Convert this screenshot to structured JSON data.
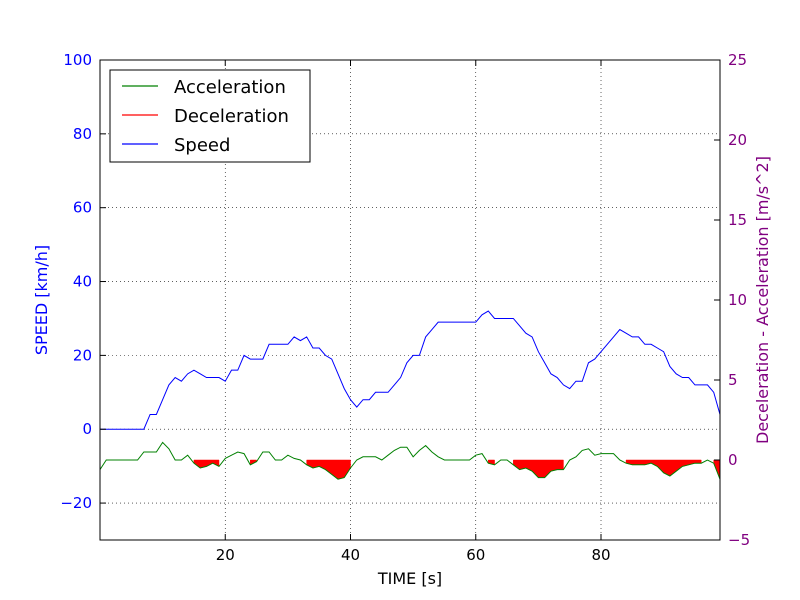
{
  "chart_data": {
    "type": "line",
    "xlabel": "TIME [s]",
    "ylabel_left": "SPEED [km/h]",
    "ylabel_right": "Deceleration - Acceleration [m/s^2]",
    "xlim": [
      0,
      99
    ],
    "ylim_left": [
      -30,
      100
    ],
    "ylim_right": [
      -5,
      25
    ],
    "xticks": [
      "20",
      "40",
      "60",
      "80"
    ],
    "yticks_left": [
      "−20",
      "0",
      "20",
      "40",
      "60",
      "80",
      "100"
    ],
    "yticks_right": [
      "−5",
      "0",
      "5",
      "10",
      "15",
      "20",
      "25"
    ],
    "grid": true,
    "legend_position": "top-left",
    "colors": {
      "acceleration": "#008000",
      "deceleration": "#ff0000",
      "speed": "#0000ff",
      "left_axis": "#0000ff",
      "right_axis": "#800080"
    },
    "legend": [
      "Acceleration",
      "Deceleration",
      "Speed"
    ],
    "speed": {
      "x": [
        0,
        1,
        2,
        3,
        4,
        5,
        6,
        7,
        8,
        9,
        10,
        11,
        12,
        13,
        14,
        15,
        16,
        17,
        18,
        19,
        20,
        21,
        22,
        23,
        24,
        25,
        26,
        27,
        28,
        29,
        30,
        31,
        32,
        33,
        34,
        35,
        36,
        37,
        38,
        39,
        40,
        41,
        42,
        43,
        44,
        45,
        46,
        47,
        48,
        49,
        50,
        51,
        52,
        53,
        54,
        55,
        56,
        57,
        58,
        59,
        60,
        61,
        62,
        63,
        64,
        65,
        66,
        67,
        68,
        69,
        70,
        71,
        72,
        73,
        74,
        75,
        76,
        77,
        78,
        79,
        80,
        81,
        82,
        83,
        84,
        85,
        86,
        87,
        88,
        89,
        90,
        91,
        92,
        93,
        94,
        95,
        96,
        97,
        98,
        99
      ],
      "values": [
        0,
        0,
        0,
        0,
        0,
        0,
        0,
        0,
        4,
        4,
        8,
        12,
        14,
        13,
        15,
        16,
        15,
        14,
        14,
        14,
        13,
        16,
        16,
        20,
        19,
        19,
        19,
        23,
        23,
        23,
        23,
        25,
        24,
        25,
        22,
        22,
        20,
        19,
        15,
        11,
        8,
        6,
        8,
        8,
        10,
        10,
        10,
        12,
        14,
        18,
        20,
        20,
        25,
        27,
        29,
        29,
        29,
        29,
        29,
        29,
        29,
        31,
        32,
        30,
        30,
        30,
        30,
        28,
        26,
        25,
        21,
        18,
        15,
        14,
        12,
        11,
        13,
        13,
        18,
        19,
        21,
        23,
        25,
        27,
        26,
        25,
        25,
        23,
        23,
        22,
        21,
        17,
        15,
        14,
        14,
        12,
        12,
        12,
        10,
        4
      ]
    },
    "acceleration": {
      "x": [
        0,
        1,
        2,
        3,
        4,
        5,
        6,
        7,
        8,
        9,
        10,
        11,
        12,
        13,
        14,
        15,
        16,
        17,
        18,
        19,
        20,
        21,
        22,
        23,
        24,
        25,
        26,
        27,
        28,
        29,
        30,
        31,
        32,
        33,
        34,
        35,
        36,
        37,
        38,
        39,
        40,
        41,
        42,
        43,
        44,
        45,
        46,
        47,
        48,
        49,
        50,
        51,
        52,
        53,
        54,
        55,
        56,
        57,
        58,
        59,
        60,
        61,
        62,
        63,
        64,
        65,
        66,
        67,
        68,
        69,
        70,
        71,
        72,
        73,
        74,
        75,
        76,
        77,
        78,
        79,
        80,
        81,
        82,
        83,
        84,
        85,
        86,
        87,
        88,
        89,
        90,
        91,
        92,
        93,
        94,
        95,
        96,
        97,
        98,
        99
      ],
      "values": [
        -0.6,
        0,
        0,
        0,
        0,
        0,
        0,
        0.5,
        0.5,
        0.5,
        1.1,
        0.7,
        0,
        0,
        0.3,
        -0.2,
        -0.5,
        -0.4,
        -0.2,
        -0.4,
        0.1,
        0.3,
        0.5,
        0.4,
        -0.3,
        -0.1,
        0.5,
        0.5,
        0,
        0,
        0.3,
        0.1,
        0,
        -0.3,
        -0.5,
        -0.4,
        -0.6,
        -0.9,
        -1.2,
        -1.1,
        -0.5,
        0,
        0.2,
        0.2,
        0.2,
        0,
        0.3,
        0.6,
        0.8,
        0.8,
        0.2,
        0.6,
        0.9,
        0.5,
        0.2,
        0,
        0,
        0,
        0,
        0,
        0.3,
        0.4,
        -0.2,
        -0.3,
        0,
        0,
        -0.3,
        -0.6,
        -0.5,
        -0.7,
        -1.1,
        -1.1,
        -0.7,
        -0.6,
        -0.6,
        0,
        0.2,
        0.6,
        0.7,
        0.3,
        0.4,
        0.4,
        0.4,
        0,
        -0.2,
        -0.3,
        -0.3,
        -0.3,
        -0.2,
        -0.4,
        -0.8,
        -1,
        -0.7,
        -0.4,
        -0.3,
        -0.2,
        -0.2,
        0,
        -0.2,
        -1.2
      ]
    }
  }
}
